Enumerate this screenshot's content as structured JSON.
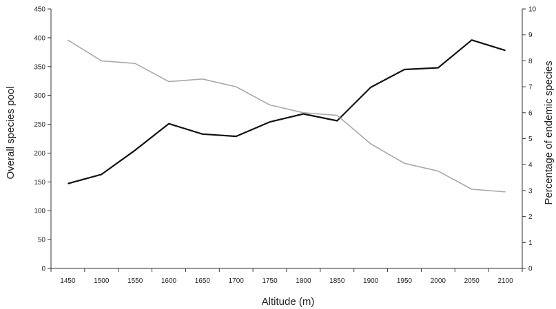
{
  "chart_data": {
    "type": "line",
    "title": "",
    "xlabel": "Altitude (m)",
    "ylabel_left": "Overall species pool",
    "ylabel_right": "Percentage of endemic species",
    "categories": [
      "1450",
      "1500",
      "1550",
      "1600",
      "1650",
      "1700",
      "1750",
      "1800",
      "1850",
      "1900",
      "1950",
      "2000",
      "2050",
      "2100"
    ],
    "ylim_left": [
      0,
      450
    ],
    "ylim_right": [
      0,
      10
    ],
    "yticks_left": [
      "0",
      "50",
      "100",
      "150",
      "200",
      "250",
      "300",
      "350",
      "400",
      "450"
    ],
    "yticks_right": [
      "0",
      "1",
      "2",
      "3",
      "4",
      "5",
      "6",
      "7",
      "8",
      "9",
      "10"
    ],
    "grid": false,
    "legend": "none",
    "series": [
      {
        "axis": "left",
        "color": "#111111",
        "values": [
          147,
          163,
          205,
          251,
          233,
          229,
          254,
          268,
          256,
          314,
          345,
          348,
          396,
          378
        ]
      },
      {
        "axis": "right",
        "color": "#a8a8a8",
        "values": [
          8.8,
          8.0,
          7.9,
          7.2,
          7.3,
          7.0,
          6.3,
          6.0,
          5.9,
          4.8,
          4.05,
          3.75,
          3.05,
          2.95
        ]
      }
    ]
  }
}
